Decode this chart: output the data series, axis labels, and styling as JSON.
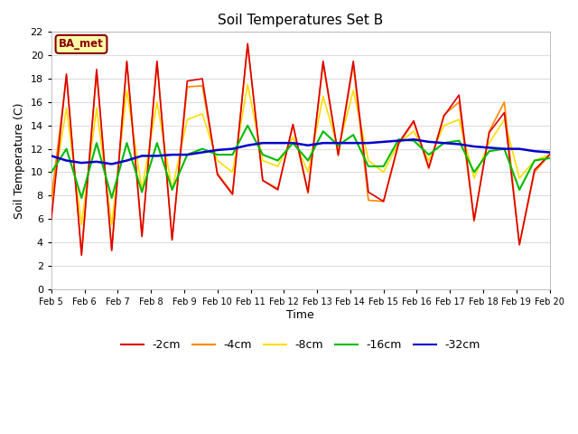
{
  "title": "Soil Temperatures Set B",
  "xlabel": "Time",
  "ylabel": "Soil Temperature (C)",
  "ylim": [
    0,
    22
  ],
  "yticks": [
    0,
    2,
    4,
    6,
    8,
    10,
    12,
    14,
    16,
    18,
    20,
    22
  ],
  "xtick_labels": [
    "Feb 5",
    "Feb 6",
    "Feb 7",
    "Feb 8",
    "Feb 9",
    "Feb 10",
    "Feb 11",
    "Feb 12",
    "Feb 13",
    "Feb 14",
    "Feb 15",
    "Feb 16",
    "Feb 17",
    "Feb 18",
    "Feb 19",
    "Feb 20"
  ],
  "annotation_text": "BA_met",
  "annotation_color": "#8B0000",
  "annotation_bg": "#FFFFAA",
  "annotation_border": "#8B0000",
  "colors": {
    "-2cm": "#DD0000",
    "-4cm": "#FF8800",
    "-8cm": "#FFDD00",
    "-16cm": "#00BB00",
    "-32cm": "#0000CC"
  },
  "background_color": "#FFFFFF",
  "plot_bg": "#FFFFFF",
  "grid_color": "#DDDDDD",
  "series_2cm": [
    6.0,
    18.4,
    2.9,
    18.8,
    3.3,
    19.5,
    4.5,
    19.5,
    4.2,
    17.8,
    18.0,
    9.8,
    8.1,
    21.0,
    9.3,
    8.5,
    14.1,
    8.3,
    19.5,
    11.5,
    19.5,
    8.3,
    7.5,
    12.5,
    14.4,
    10.4,
    14.8,
    16.6,
    5.9,
    13.4,
    15.1,
    3.8,
    10.2,
    11.5
  ],
  "series_4cm": [
    7.7,
    18.2,
    3.0,
    18.6,
    3.4,
    19.4,
    4.6,
    19.4,
    4.3,
    17.3,
    17.4,
    9.9,
    8.2,
    20.9,
    9.3,
    8.6,
    14.0,
    8.2,
    19.3,
    11.4,
    19.2,
    7.6,
    7.5,
    12.4,
    14.3,
    10.3,
    14.9,
    16.0,
    5.8,
    13.5,
    16.0,
    3.8,
    10.0,
    11.5
  ],
  "series_8cm": [
    7.5,
    15.5,
    5.5,
    15.5,
    5.5,
    17.0,
    8.5,
    16.0,
    8.5,
    14.5,
    15.0,
    11.0,
    10.0,
    17.5,
    11.0,
    10.5,
    13.0,
    10.0,
    16.5,
    12.0,
    17.0,
    11.0,
    10.0,
    12.5,
    13.5,
    11.0,
    14.0,
    14.5,
    9.5,
    12.5,
    14.5,
    9.5,
    11.0,
    11.5
  ],
  "series_16cm": [
    10.0,
    12.0,
    7.8,
    12.5,
    7.8,
    12.5,
    8.3,
    12.5,
    8.5,
    11.5,
    12.0,
    11.5,
    11.5,
    14.0,
    11.5,
    11.0,
    12.5,
    11.0,
    13.5,
    12.3,
    13.2,
    10.5,
    10.5,
    12.8,
    12.7,
    11.5,
    12.5,
    12.7,
    10.0,
    11.8,
    12.0,
    8.5,
    11.0,
    11.2
  ],
  "series_32cm": [
    11.4,
    11.0,
    10.8,
    10.9,
    10.7,
    11.0,
    11.4,
    11.4,
    11.5,
    11.5,
    11.7,
    11.9,
    12.0,
    12.3,
    12.5,
    12.5,
    12.5,
    12.3,
    12.5,
    12.5,
    12.5,
    12.5,
    12.6,
    12.7,
    12.8,
    12.6,
    12.5,
    12.4,
    12.2,
    12.1,
    12.0,
    12.0,
    11.8,
    11.7
  ]
}
